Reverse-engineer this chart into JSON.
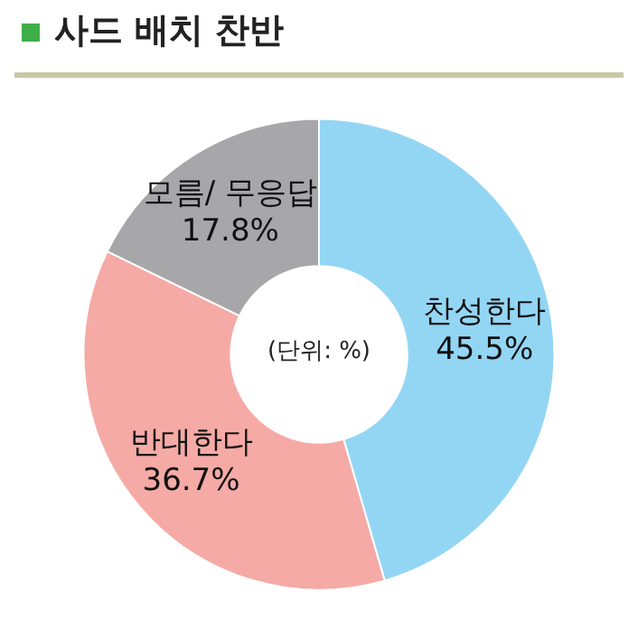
{
  "chart_data": {
    "type": "donut",
    "title": "사드 배치 찬반",
    "categories": [
      "찬성한다",
      "반대한다",
      "모름/ 무응답"
    ],
    "values": [
      45.5,
      36.7,
      17.8
    ],
    "colors": [
      "#93d6f4",
      "#f5aaa5",
      "#a7a7aa"
    ],
    "value_labels": [
      "45.5%",
      "36.7%",
      "17.8%"
    ],
    "annotations": [
      "(단위: %)"
    ]
  }
}
